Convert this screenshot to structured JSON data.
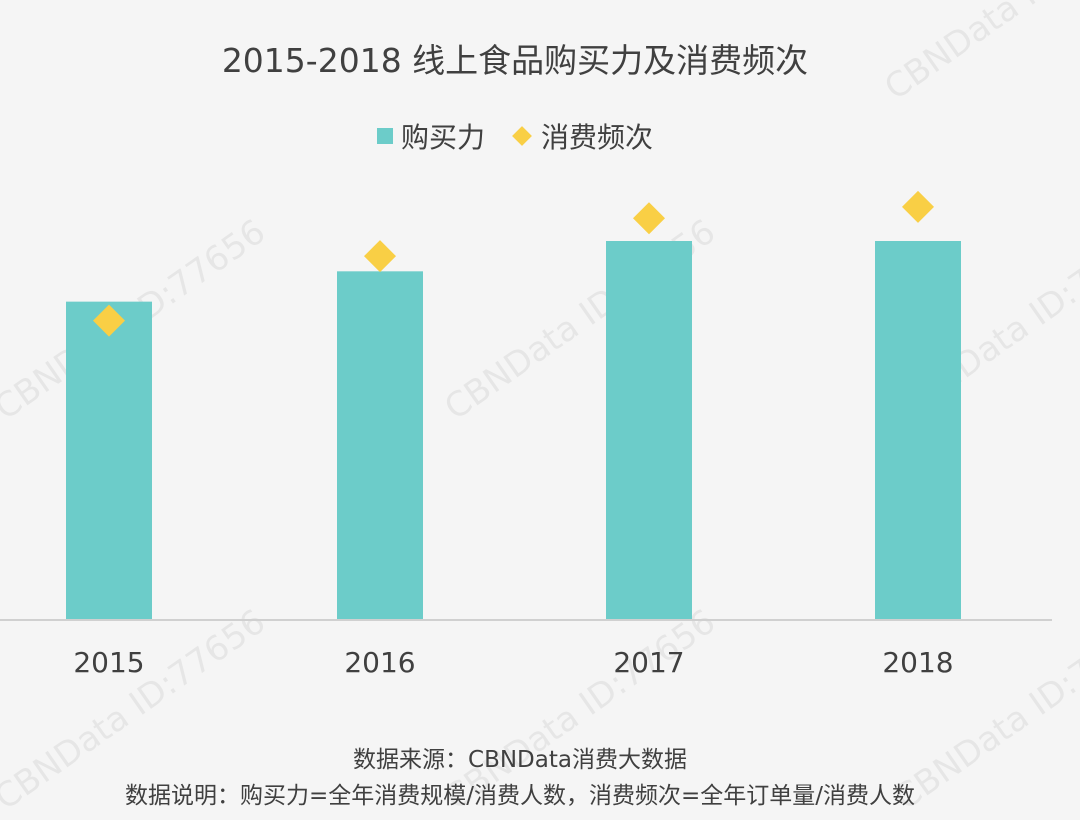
{
  "watermark": "CBNData ID:77656",
  "chart_data": {
    "type": "bar",
    "title": "2015-2018 线上食品购买力及消费频次",
    "categories": [
      "2015",
      "2016",
      "2017",
      "2018"
    ],
    "series": [
      {
        "name": "购买力",
        "type": "bar",
        "color": "#6cccc9",
        "values": [
          84,
          92,
          100,
          100
        ]
      },
      {
        "name": "消费频次",
        "type": "scatter",
        "marker": "diamond",
        "color": "#f9cf45",
        "values": [
          79,
          96,
          106,
          109
        ]
      }
    ],
    "value_note": "relative index (no y-axis printed)",
    "ylim": [
      0,
      110
    ],
    "grid": false,
    "legend_position": "top"
  },
  "footer": {
    "source": "数据来源：CBNData消费大数据",
    "note": "数据说明：购买力=全年消费规模/消费人数，消费频次=全年订单量/消费人数"
  }
}
